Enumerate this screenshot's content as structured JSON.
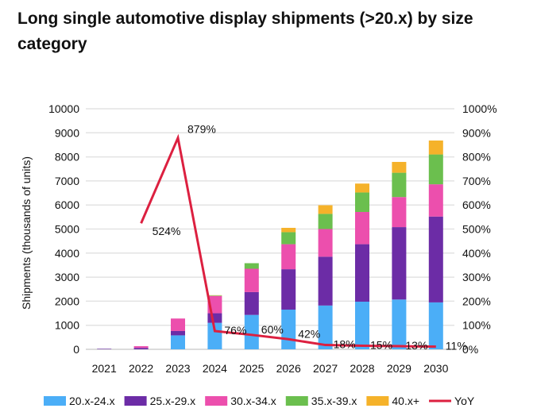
{
  "chart_data": {
    "type": "bar",
    "stacked": true,
    "title": "Long single automotive display shipments (>20.x) by size category",
    "xlabel": "",
    "ylabel": "Shipments (thousands of units)",
    "ylim": [
      0,
      10000
    ],
    "y2lim": [
      0,
      1000
    ],
    "yticks": [
      "0",
      "1000",
      "2000",
      "3000",
      "4000",
      "5000",
      "6000",
      "7000",
      "8000",
      "9000",
      "10000"
    ],
    "y2ticks": [
      "0%",
      "100%",
      "200%",
      "300%",
      "400%",
      "500%",
      "600%",
      "700%",
      "800%",
      "900%",
      "1000%"
    ],
    "grid": true,
    "legend": "bottom",
    "categories": [
      "2021",
      "2022",
      "2023",
      "2024",
      "2025",
      "2026",
      "2027",
      "2028",
      "2029",
      "2030"
    ],
    "series": [
      {
        "name": "20.x-24.x",
        "color": "#4BAEF7",
        "values": [
          0,
          0,
          580,
          1100,
          1430,
          1650,
          1820,
          1980,
          2070,
          1950
        ]
      },
      {
        "name": "25.x-29.x",
        "color": "#6C2CA6",
        "values": [
          20,
          60,
          180,
          400,
          950,
          1680,
          2030,
          2390,
          3010,
          3570
        ]
      },
      {
        "name": "30.x-34.x",
        "color": "#EC4FAD",
        "values": [
          0,
          70,
          520,
          720,
          970,
          1040,
          1150,
          1340,
          1250,
          1340
        ]
      },
      {
        "name": "35.x-39.x",
        "color": "#6BBF4E",
        "values": [
          0,
          0,
          0,
          20,
          230,
          500,
          630,
          810,
          1010,
          1240
        ]
      },
      {
        "name": "40.x+",
        "color": "#F5B22A",
        "values": [
          0,
          0,
          0,
          10,
          0,
          180,
          360,
          370,
          450,
          580
        ]
      }
    ],
    "line": {
      "name": "YoY",
      "color": "#DC2040",
      "axis": "right",
      "values": [
        null,
        524,
        879,
        76,
        60,
        42,
        18,
        15,
        13,
        11
      ],
      "labels": [
        "",
        "524%",
        "879%",
        "76%",
        "60%",
        "42%",
        "18%",
        "15%",
        "13%",
        "11%"
      ]
    }
  }
}
